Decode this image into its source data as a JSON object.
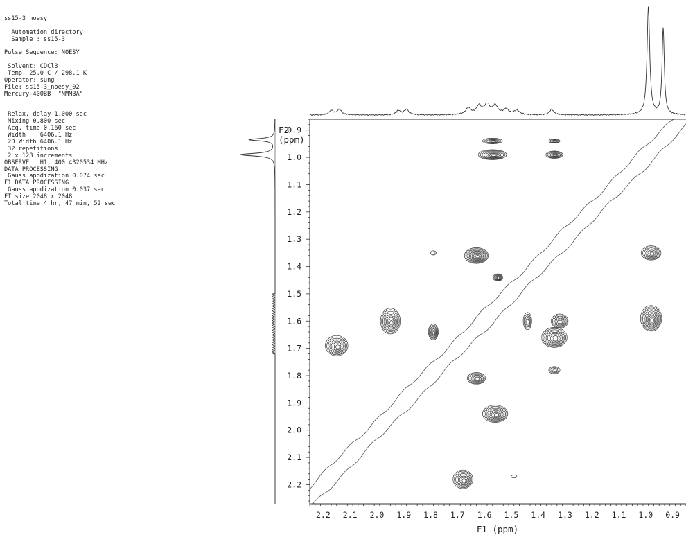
{
  "acquisition": {
    "lines": [
      "ss15-3_noesy",
      "",
      "  Automation directory:",
      "  Sample : ss15-3",
      "",
      "Pulse Sequence: NOESY",
      "",
      " Solvent: CDCl3",
      " Temp. 25.0 C / 298.1 K",
      "Operator: sung",
      "File: ss15-3_noesy_02",
      "Mercury-400BB  \"NMMBA\"",
      "",
      "",
      " Relax. delay 1.000 sec",
      " Mixing 0.800 sec",
      " Acq. time 0.160 sec",
      " Width    6406.1 Hz",
      " 2D Width 6406.1 Hz",
      " 32 repetitions",
      " 2 x 128 increments",
      "OBSERVE   H1, 400.4320534 MHz",
      "DATA PROCESSING",
      " Gauss apodization 0.074 sec",
      "F1 DATA PROCESSING",
      " Gauss apodization 0.037 sec",
      "FT size 2048 x 2048",
      "Total time 4 hr, 47 min, 52 sec"
    ]
  },
  "chart_data": {
    "type": "heatmap",
    "title": "",
    "xlabel": "F1 (ppm)",
    "ylabel": "F2\n(ppm)",
    "xlim": [
      2.25,
      0.85
    ],
    "ylim": [
      0.86,
      2.27
    ],
    "xticks": [
      2.2,
      2.1,
      2.0,
      1.9,
      1.8,
      1.7,
      1.6,
      1.5,
      1.4,
      1.3,
      1.2,
      1.1,
      1.0,
      0.9
    ],
    "yticks": [
      0.9,
      1.0,
      1.1,
      1.2,
      1.3,
      1.4,
      1.5,
      1.6,
      1.7,
      1.8,
      1.9,
      2.0,
      2.1,
      2.2
    ],
    "cross_peaks": [
      {
        "f1": 1.57,
        "f2": 0.94,
        "w": 0.07,
        "h": 0.02,
        "levels": 5
      },
      {
        "f1": 1.57,
        "f2": 0.99,
        "w": 0.1,
        "h": 0.035,
        "levels": 8
      },
      {
        "f1": 1.34,
        "f2": 0.94,
        "w": 0.04,
        "h": 0.015,
        "levels": 4
      },
      {
        "f1": 1.34,
        "f2": 0.99,
        "w": 0.06,
        "h": 0.025,
        "levels": 6
      },
      {
        "f1": 1.63,
        "f2": 1.36,
        "w": 0.085,
        "h": 0.055,
        "levels": 10
      },
      {
        "f1": 1.79,
        "f2": 1.35,
        "w": 0.02,
        "h": 0.015,
        "levels": 2
      },
      {
        "f1": 1.55,
        "f2": 1.44,
        "w": 0.035,
        "h": 0.025,
        "levels": 6
      },
      {
        "f1": 0.98,
        "f2": 1.35,
        "w": 0.07,
        "h": 0.05,
        "levels": 7
      },
      {
        "f1": 2.15,
        "f2": 1.69,
        "w": 0.08,
        "h": 0.07,
        "levels": 8
      },
      {
        "f1": 1.95,
        "f2": 1.6,
        "w": 0.07,
        "h": 0.09,
        "levels": 9
      },
      {
        "f1": 1.79,
        "f2": 1.64,
        "w": 0.035,
        "h": 0.055,
        "levels": 7
      },
      {
        "f1": 1.44,
        "f2": 1.6,
        "w": 0.03,
        "h": 0.06,
        "levels": 5
      },
      {
        "f1": 1.32,
        "f2": 1.6,
        "w": 0.06,
        "h": 0.05,
        "levels": 7
      },
      {
        "f1": 1.34,
        "f2": 1.66,
        "w": 0.09,
        "h": 0.07,
        "levels": 9
      },
      {
        "f1": 0.98,
        "f2": 1.59,
        "w": 0.075,
        "h": 0.09,
        "levels": 10
      },
      {
        "f1": 1.34,
        "f2": 1.78,
        "w": 0.04,
        "h": 0.025,
        "levels": 4
      },
      {
        "f1": 1.63,
        "f2": 1.81,
        "w": 0.065,
        "h": 0.04,
        "levels": 7
      },
      {
        "f1": 1.56,
        "f2": 1.94,
        "w": 0.09,
        "h": 0.06,
        "levels": 9
      },
      {
        "f1": 1.68,
        "f2": 2.18,
        "w": 0.07,
        "h": 0.065,
        "levels": 8
      },
      {
        "f1": 1.49,
        "f2": 2.17,
        "w": 0.02,
        "h": 0.01,
        "levels": 1
      }
    ],
    "f1_projection_peaks": [
      {
        "ppm": 0.99,
        "height": 1.0,
        "width": 0.006
      },
      {
        "ppm": 0.935,
        "height": 0.8,
        "width": 0.005
      },
      {
        "ppm": 2.17,
        "height": 0.04,
        "width": 0.01
      },
      {
        "ppm": 2.14,
        "height": 0.05,
        "width": 0.01
      },
      {
        "ppm": 1.92,
        "height": 0.04,
        "width": 0.01
      },
      {
        "ppm": 1.89,
        "height": 0.05,
        "width": 0.01
      },
      {
        "ppm": 1.66,
        "height": 0.06,
        "width": 0.012
      },
      {
        "ppm": 1.62,
        "height": 0.08,
        "width": 0.012
      },
      {
        "ppm": 1.59,
        "height": 0.09,
        "width": 0.012
      },
      {
        "ppm": 1.56,
        "height": 0.08,
        "width": 0.012
      },
      {
        "ppm": 1.52,
        "height": 0.05,
        "width": 0.012
      },
      {
        "ppm": 1.48,
        "height": 0.04,
        "width": 0.012
      },
      {
        "ppm": 1.35,
        "height": 0.05,
        "width": 0.01
      }
    ],
    "f2_projection_peaks": [
      {
        "ppm": 0.99,
        "height": 1.0,
        "width": 0.006
      },
      {
        "ppm": 0.935,
        "height": 0.75,
        "width": 0.005
      }
    ]
  }
}
